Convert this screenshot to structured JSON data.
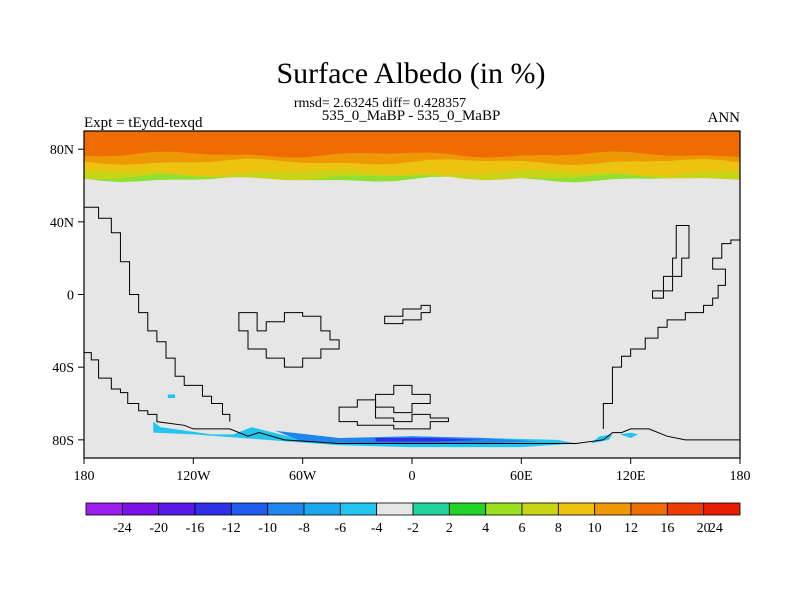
{
  "chart_data": {
    "type": "heatmap",
    "title": "Surface Albedo (in %)",
    "stats": "rmsd= 2.63245  diff= 0.428357",
    "subtitle": "535_0_MaBP - 535_0_MaBP",
    "left_label": "Expt = tEydd-texqd",
    "right_label": "ANN",
    "x_range": [
      -180,
      180
    ],
    "y_range": [
      -90,
      90
    ],
    "x_ticks": [
      {
        "value": -180,
        "label": "180"
      },
      {
        "value": -120,
        "label": "120W"
      },
      {
        "value": -60,
        "label": "60W"
      },
      {
        "value": 0,
        "label": "0"
      },
      {
        "value": 60,
        "label": "60E"
      },
      {
        "value": 120,
        "label": "120E"
      },
      {
        "value": 180,
        "label": "180"
      }
    ],
    "y_ticks": [
      {
        "value": 80,
        "label": "80N"
      },
      {
        "value": 40,
        "label": "40N"
      },
      {
        "value": 0,
        "label": "0"
      },
      {
        "value": -40,
        "label": "40S"
      },
      {
        "value": -80,
        "label": "80S"
      }
    ],
    "background_color": "#e6e6e6",
    "colorbar": {
      "colors": [
        "#9a1ff0",
        "#7b10e8",
        "#5818e8",
        "#2d30e8",
        "#1e5cf0",
        "#1f86ee",
        "#1aa8ee",
        "#22c5ee",
        "#e6e6e6",
        "#21d3a0",
        "#22d228",
        "#98e020",
        "#c9d416",
        "#ecc410",
        "#ef9806",
        "#ef6c02",
        "#ec3c00",
        "#e81c00"
      ],
      "labels": [
        "-24",
        "-20",
        "-16",
        "-12",
        "-10",
        "-8",
        "-6",
        "-4",
        "-2",
        "2",
        "4",
        "6",
        "8",
        "10",
        "12",
        "16",
        "20",
        "24"
      ]
    },
    "arctic_bands": [
      {
        "lat_top": 90,
        "lat_bot": 63.5,
        "color": "#8fe030"
      },
      {
        "lat_top": 90,
        "lat_bot": 64.5,
        "color": "#c9d416"
      },
      {
        "lat_top": 90,
        "lat_bot": 67,
        "color": "#ecc410"
      },
      {
        "lat_top": 90,
        "lat_bot": 73,
        "color": "#ef9806"
      },
      {
        "lat_top": 90,
        "lat_bot": 77,
        "color": "#ef6c02"
      }
    ],
    "antarctic_anomalies": [
      {
        "points": [
          [
            -142,
            -70
          ],
          [
            -138,
            -73
          ],
          [
            -110,
            -77
          ],
          [
            -98,
            -77
          ],
          [
            -88,
            -73
          ],
          [
            -76,
            -76
          ],
          [
            -60,
            -80
          ],
          [
            -30,
            -80
          ],
          [
            0,
            -78
          ],
          [
            40,
            -79
          ],
          [
            80,
            -80
          ],
          [
            90,
            -82
          ],
          [
            60,
            -84
          ],
          [
            0,
            -84
          ],
          [
            -40,
            -83
          ],
          [
            -80,
            -80
          ],
          [
            -120,
            -77
          ],
          [
            -142,
            -76
          ]
        ],
        "color": "#22c5ee"
      },
      {
        "points": [
          [
            -75,
            -75
          ],
          [
            -40,
            -79
          ],
          [
            0,
            -78
          ],
          [
            40,
            -79
          ],
          [
            70,
            -81
          ],
          [
            30,
            -82
          ],
          [
            -20,
            -82
          ],
          [
            -60,
            -81
          ]
        ],
        "color": "#1f86ee"
      },
      {
        "points": [
          [
            -20,
            -79
          ],
          [
            10,
            -79
          ],
          [
            40,
            -80
          ],
          [
            10,
            -81
          ],
          [
            -20,
            -81
          ]
        ],
        "color": "#2d30e8"
      },
      {
        "points": [
          [
            98,
            -82
          ],
          [
            103,
            -78
          ],
          [
            110,
            -77
          ],
          [
            108,
            -80
          ]
        ],
        "color": "#22c5ee"
      },
      {
        "points": [
          [
            114,
            -77
          ],
          [
            120,
            -76
          ],
          [
            124,
            -77
          ],
          [
            120,
            -79
          ]
        ],
        "color": "#22c5ee"
      },
      {
        "points": [
          [
            -134,
            -55
          ],
          [
            -130,
            -55
          ],
          [
            -130,
            -57
          ],
          [
            -134,
            -57
          ]
        ],
        "color": "#22c5ee"
      }
    ],
    "continent_outlines": [
      {
        "points": [
          [
            -180,
            -32
          ],
          [
            -176,
            -32
          ],
          [
            -176,
            -36
          ],
          [
            -172,
            -36
          ],
          [
            -172,
            -46
          ],
          [
            -165,
            -46
          ],
          [
            -165,
            -52
          ],
          [
            -160,
            -52
          ],
          [
            -160,
            -54
          ],
          [
            -156,
            -54
          ],
          [
            -156,
            -60
          ],
          [
            -150,
            -60
          ],
          [
            -150,
            -64
          ],
          [
            -145,
            -64
          ],
          [
            -145,
            -66
          ],
          [
            -140,
            -66
          ],
          [
            -140,
            -70
          ],
          [
            -125,
            -72
          ],
          [
            -120,
            -74
          ],
          [
            -100,
            -74
          ],
          [
            -90,
            -78
          ],
          [
            -84,
            -76
          ],
          [
            -70,
            -80
          ],
          [
            -40,
            -82
          ],
          [
            0,
            -82
          ],
          [
            40,
            -82
          ],
          [
            60,
            -82
          ],
          [
            90,
            -82
          ],
          [
            105,
            -80
          ],
          [
            110,
            -76
          ],
          [
            115,
            -76
          ],
          [
            120,
            -74
          ],
          [
            130,
            -74
          ],
          [
            140,
            -78
          ],
          [
            150,
            -80
          ],
          [
            165,
            -80
          ],
          [
            175,
            -80
          ],
          [
            180,
            -80
          ]
        ],
        "closed": false
      },
      {
        "points": [
          [
            -180,
            48
          ],
          [
            -172,
            48
          ],
          [
            -172,
            42
          ],
          [
            -165,
            42
          ],
          [
            -165,
            34
          ],
          [
            -160,
            34
          ],
          [
            -160,
            18
          ],
          [
            -155,
            18
          ],
          [
            -155,
            0
          ],
          [
            -150,
            0
          ],
          [
            -150,
            -10
          ],
          [
            -145,
            -10
          ],
          [
            -145,
            -20
          ],
          [
            -140,
            -20
          ],
          [
            -140,
            -26
          ],
          [
            -135,
            -26
          ],
          [
            -135,
            -35
          ],
          [
            -130,
            -35
          ],
          [
            -130,
            -45
          ],
          [
            -125,
            -45
          ],
          [
            -125,
            -50
          ],
          [
            -115,
            -50
          ],
          [
            -115,
            -56
          ],
          [
            -110,
            -56
          ],
          [
            -110,
            -60
          ],
          [
            -104,
            -60
          ],
          [
            -104,
            -66
          ],
          [
            -100,
            -66
          ],
          [
            -100,
            -70
          ]
        ],
        "closed": false
      },
      {
        "points": [
          [
            -95,
            -10
          ],
          [
            -85,
            -10
          ],
          [
            -85,
            -20
          ],
          [
            -80,
            -20
          ],
          [
            -80,
            -15
          ],
          [
            -70,
            -15
          ],
          [
            -70,
            -10
          ],
          [
            -60,
            -10
          ],
          [
            -60,
            -12
          ],
          [
            -50,
            -12
          ],
          [
            -50,
            -20
          ],
          [
            -45,
            -20
          ],
          [
            -45,
            -25
          ],
          [
            -40,
            -25
          ],
          [
            -40,
            -30
          ],
          [
            -50,
            -30
          ],
          [
            -50,
            -35
          ],
          [
            -60,
            -35
          ],
          [
            -60,
            -40
          ],
          [
            -70,
            -40
          ],
          [
            -70,
            -35
          ],
          [
            -80,
            -35
          ],
          [
            -80,
            -30
          ],
          [
            -90,
            -30
          ],
          [
            -90,
            -20
          ],
          [
            -95,
            -20
          ]
        ],
        "closed": true
      },
      {
        "points": [
          [
            -15,
            -12
          ],
          [
            -5,
            -12
          ],
          [
            -5,
            -8
          ],
          [
            5,
            -8
          ],
          [
            5,
            -6
          ],
          [
            10,
            -6
          ],
          [
            10,
            -10
          ],
          [
            5,
            -10
          ],
          [
            5,
            -14
          ],
          [
            -5,
            -14
          ],
          [
            -5,
            -16
          ],
          [
            -15,
            -16
          ]
        ],
        "closed": true
      },
      {
        "points": [
          [
            -20,
            -55
          ],
          [
            -10,
            -55
          ],
          [
            -10,
            -50
          ],
          [
            0,
            -50
          ],
          [
            0,
            -55
          ],
          [
            10,
            -55
          ],
          [
            10,
            -60
          ],
          [
            0,
            -60
          ],
          [
            0,
            -65
          ],
          [
            -10,
            -65
          ],
          [
            -10,
            -62
          ],
          [
            -20,
            -62
          ]
        ],
        "closed": true
      },
      {
        "points": [
          [
            -40,
            -62
          ],
          [
            -30,
            -62
          ],
          [
            -30,
            -58
          ],
          [
            -20,
            -58
          ],
          [
            -20,
            -68
          ],
          [
            -10,
            -68
          ],
          [
            -10,
            -70
          ],
          [
            0,
            -70
          ],
          [
            0,
            -66
          ],
          [
            10,
            -66
          ],
          [
            10,
            -68
          ],
          [
            20,
            -68
          ],
          [
            20,
            -70
          ],
          [
            10,
            -70
          ],
          [
            10,
            -74
          ],
          [
            -10,
            -74
          ],
          [
            -10,
            -72
          ],
          [
            -30,
            -72
          ],
          [
            -30,
            -70
          ],
          [
            -40,
            -70
          ]
        ],
        "closed": true
      },
      {
        "points": [
          [
            145,
            38
          ],
          [
            152,
            38
          ],
          [
            152,
            20
          ],
          [
            148,
            20
          ],
          [
            148,
            10
          ],
          [
            143,
            10
          ],
          [
            143,
            2
          ],
          [
            138,
            2
          ],
          [
            138,
            -2
          ],
          [
            132,
            -2
          ],
          [
            132,
            2
          ],
          [
            138,
            2
          ],
          [
            138,
            10
          ],
          [
            143,
            10
          ],
          [
            143,
            20
          ],
          [
            145,
            20
          ]
        ],
        "closed": true
      },
      {
        "points": [
          [
            180,
            30
          ],
          [
            175,
            30
          ],
          [
            175,
            28
          ],
          [
            170,
            28
          ],
          [
            170,
            20
          ],
          [
            165,
            20
          ],
          [
            165,
            14
          ],
          [
            172,
            14
          ],
          [
            172,
            5
          ],
          [
            168,
            5
          ],
          [
            168,
            -2
          ],
          [
            165,
            -2
          ],
          [
            165,
            -6
          ],
          [
            160,
            -6
          ],
          [
            160,
            -10
          ],
          [
            150,
            -10
          ],
          [
            150,
            -14
          ],
          [
            140,
            -14
          ],
          [
            140,
            -18
          ],
          [
            135,
            -18
          ],
          [
            135,
            -24
          ],
          [
            128,
            -24
          ],
          [
            128,
            -30
          ],
          [
            120,
            -30
          ],
          [
            120,
            -34
          ],
          [
            115,
            -34
          ],
          [
            115,
            -40
          ],
          [
            110,
            -40
          ],
          [
            110,
            -60
          ],
          [
            105,
            -60
          ],
          [
            105,
            -74
          ]
        ],
        "closed": false
      }
    ]
  }
}
